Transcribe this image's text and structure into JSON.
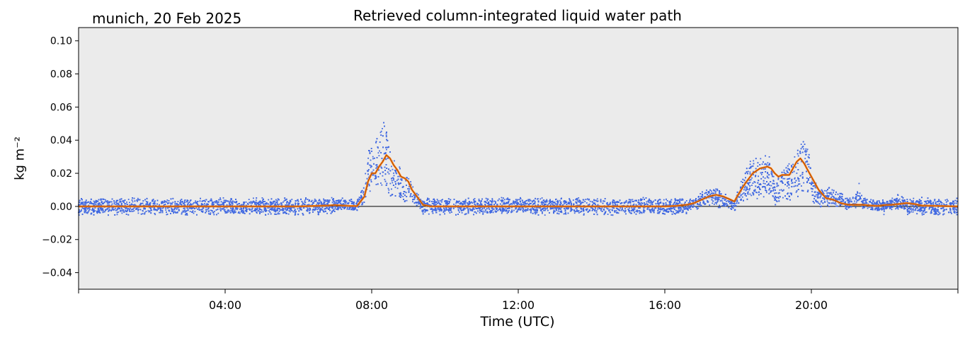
{
  "header": {
    "location_date": "munich, 20 Feb 2025",
    "title": "Retrieved column-integrated liquid water path"
  },
  "chart_data": {
    "type": "scatter",
    "title": "Retrieved column-integrated liquid water path",
    "subtitle": "munich, 20 Feb 2025",
    "xlabel": "Time (UTC)",
    "ylabel": "kg m⁻²",
    "xlim": [
      0,
      24
    ],
    "ylim": [
      -0.05,
      0.108
    ],
    "x_ticks": [
      4,
      8,
      12,
      16,
      20
    ],
    "x_tick_labels": [
      "04:00",
      "08:00",
      "12:00",
      "16:00",
      "20:00"
    ],
    "y_ticks": [
      -0.04,
      -0.02,
      0.0,
      0.02,
      0.04,
      0.06,
      0.08,
      0.1
    ],
    "y_tick_labels": [
      "−0.04",
      "−0.02",
      "0.00",
      "0.02",
      "0.04",
      "0.06",
      "0.08",
      "0.10"
    ],
    "background_color": "#ebebeb",
    "zero_line": 0,
    "series": [
      {
        "kind": "scatter",
        "color": "#4169e1",
        "x": [
          0.0,
          0.5,
          1.0,
          1.5,
          2.0,
          2.5,
          3.0,
          3.5,
          4.0,
          4.5,
          5.0,
          5.5,
          6.0,
          6.5,
          6.8,
          7.0,
          7.2,
          7.4,
          7.6,
          7.8,
          7.9,
          8.0,
          8.1,
          8.2,
          8.3,
          8.35,
          8.4,
          8.5,
          8.6,
          8.7,
          8.8,
          8.9,
          9.0,
          9.1,
          9.2,
          9.3,
          9.4,
          9.5,
          9.7,
          10.0,
          10.5,
          11.0,
          11.5,
          12.0,
          12.5,
          13.0,
          13.5,
          14.0,
          14.5,
          15.0,
          15.5,
          16.0,
          16.3,
          16.6,
          16.8,
          17.0,
          17.2,
          17.4,
          17.6,
          17.8,
          17.9,
          18.0,
          18.2,
          18.4,
          18.6,
          18.8,
          18.9,
          19.0,
          19.1,
          19.2,
          19.4,
          19.6,
          19.7,
          19.8,
          19.9,
          20.0,
          20.2,
          20.4,
          20.6,
          20.8,
          21.0,
          21.2,
          21.3,
          21.4,
          21.6,
          21.8,
          22.0,
          22.2,
          22.4,
          22.5,
          22.6,
          22.8,
          23.0,
          23.5,
          24.0
        ],
        "y": [
          0.0,
          0.0,
          0.0,
          0.0,
          0.0,
          0.0,
          0.0,
          0.0,
          0.0,
          0.0,
          0.0,
          0.0,
          0.0,
          0.0,
          0.001,
          0.001,
          0.002,
          0.002,
          0.001,
          0.012,
          0.03,
          0.038,
          0.04,
          0.044,
          0.048,
          0.052,
          0.045,
          0.035,
          0.03,
          0.025,
          0.02,
          0.019,
          0.016,
          0.012,
          0.008,
          0.004,
          0.0,
          0.0,
          0.0,
          0.0,
          0.0,
          0.0,
          0.0,
          0.0,
          0.0,
          0.0,
          0.0,
          0.0,
          0.0,
          0.0,
          0.0,
          0.0,
          0.0,
          0.001,
          0.002,
          0.006,
          0.01,
          0.01,
          0.006,
          0.002,
          0.001,
          0.009,
          0.022,
          0.027,
          0.027,
          0.03,
          0.028,
          0.015,
          0.016,
          0.02,
          0.024,
          0.031,
          0.035,
          0.038,
          0.04,
          0.016,
          0.01,
          0.01,
          0.008,
          0.006,
          0.003,
          0.004,
          0.012,
          0.002,
          0.002,
          0.001,
          0.001,
          0.002,
          0.005,
          0.003,
          0.0,
          0.0,
          0.0,
          0.0,
          0.0
        ]
      },
      {
        "kind": "line",
        "color": "#ff7f0e",
        "x": [
          0.0,
          2.0,
          4.0,
          6.0,
          6.8,
          7.0,
          7.2,
          7.4,
          7.6,
          7.8,
          7.9,
          8.0,
          8.1,
          8.2,
          8.3,
          8.4,
          8.5,
          8.6,
          8.7,
          8.8,
          8.9,
          9.0,
          9.1,
          9.2,
          9.3,
          9.4,
          9.6,
          10.0,
          12.0,
          14.0,
          16.0,
          16.3,
          16.6,
          16.8,
          17.0,
          17.2,
          17.4,
          17.6,
          17.8,
          17.9,
          18.0,
          18.2,
          18.4,
          18.6,
          18.8,
          18.9,
          19.0,
          19.1,
          19.2,
          19.4,
          19.6,
          19.7,
          19.8,
          19.9,
          20.0,
          20.2,
          20.4,
          20.6,
          20.8,
          21.0,
          21.2,
          21.4,
          21.6,
          21.8,
          22.0,
          22.2,
          22.4,
          22.6,
          22.8,
          23.0,
          24.0
        ],
        "y": [
          0.0,
          0.0,
          0.0,
          0.0,
          0.0005,
          0.0008,
          0.0005,
          0.0003,
          0.0002,
          0.006,
          0.015,
          0.02,
          0.02,
          0.024,
          0.027,
          0.031,
          0.029,
          0.025,
          0.022,
          0.018,
          0.017,
          0.015,
          0.01,
          0.007,
          0.004,
          0.001,
          0.0,
          0.0,
          0.0,
          0.0,
          0.0,
          0.0003,
          0.001,
          0.002,
          0.004,
          0.006,
          0.007,
          0.006,
          0.004,
          0.003,
          0.007,
          0.014,
          0.02,
          0.023,
          0.024,
          0.023,
          0.02,
          0.018,
          0.019,
          0.019,
          0.027,
          0.029,
          0.026,
          0.022,
          0.018,
          0.01,
          0.005,
          0.004,
          0.002,
          0.001,
          0.001,
          0.001,
          0.0005,
          0.0003,
          0.0008,
          0.001,
          0.0015,
          0.002,
          0.0015,
          0.0005,
          0.0
        ]
      }
    ]
  }
}
